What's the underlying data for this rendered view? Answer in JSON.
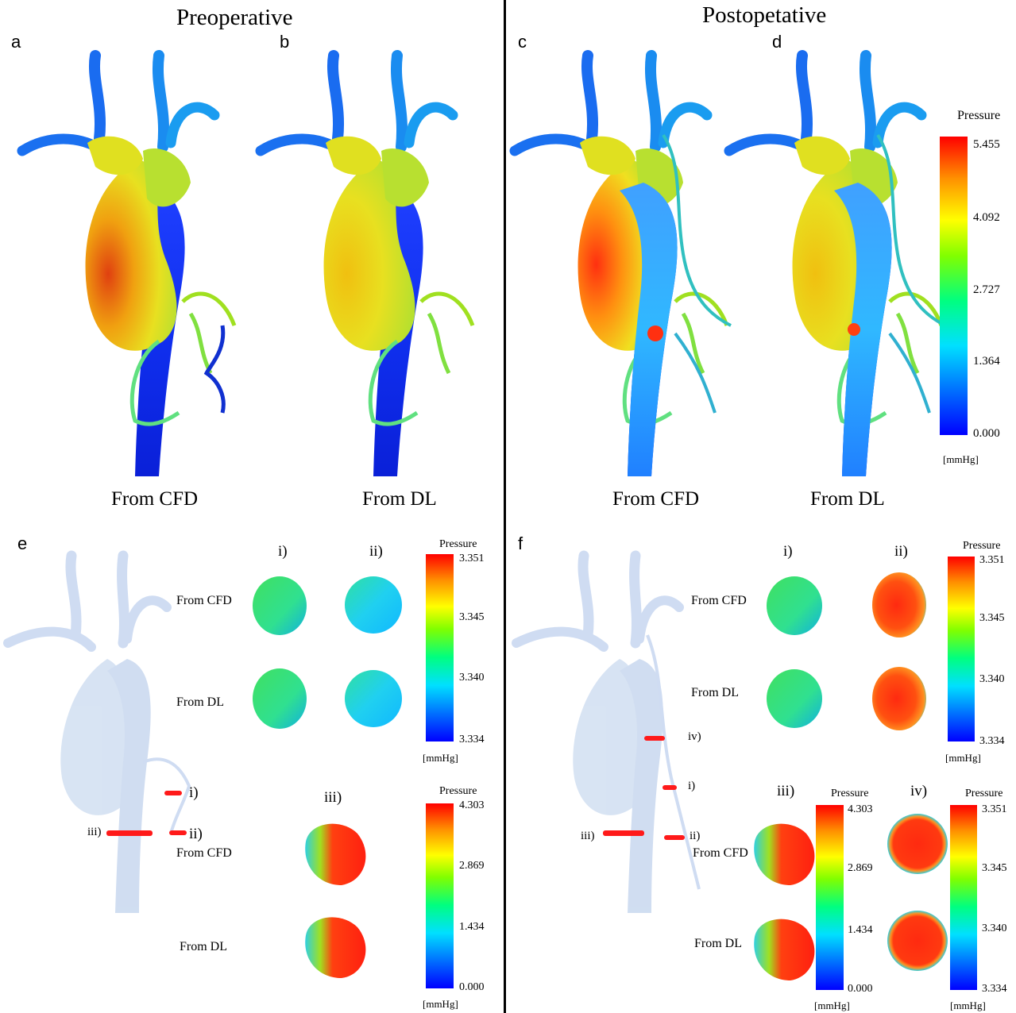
{
  "titles": {
    "preoperative": "Preoperative",
    "postoperative": "Postopetative"
  },
  "panel_letters": {
    "a": "a",
    "b": "b",
    "c": "c",
    "d": "d",
    "e": "e",
    "f": "f"
  },
  "captions": {
    "cfd": "From CFD",
    "dl": "From DL"
  },
  "row_labels": {
    "cfd": "From CFD",
    "dl": "From DL"
  },
  "roman": {
    "i": "i)",
    "ii": "ii)",
    "iii": "iii)",
    "iv": "iv)"
  },
  "colorbar_main": {
    "title": "Pressure",
    "ticks": [
      "5.455",
      "4.092",
      "2.727",
      "1.364",
      "0.000"
    ],
    "unit": "[mmHg]"
  },
  "colorbar_fine": {
    "title": "Pressure",
    "ticks": [
      "3.351",
      "3.345",
      "3.340",
      "3.334"
    ],
    "unit": "[mmHg]"
  },
  "colorbar_iii": {
    "title": "Pressure",
    "ticks": [
      "4.303",
      "2.869",
      "1.434",
      "0.000"
    ],
    "unit": "[mmHg]"
  },
  "colors": {
    "jet": [
      "#0000ff",
      "#00a0ff",
      "#00ffff",
      "#00ff60",
      "#80ff00",
      "#ffff00",
      "#ff9000",
      "#ff0000"
    ],
    "marker": "#ff1a1a",
    "ghost": "#b8cdea"
  }
}
